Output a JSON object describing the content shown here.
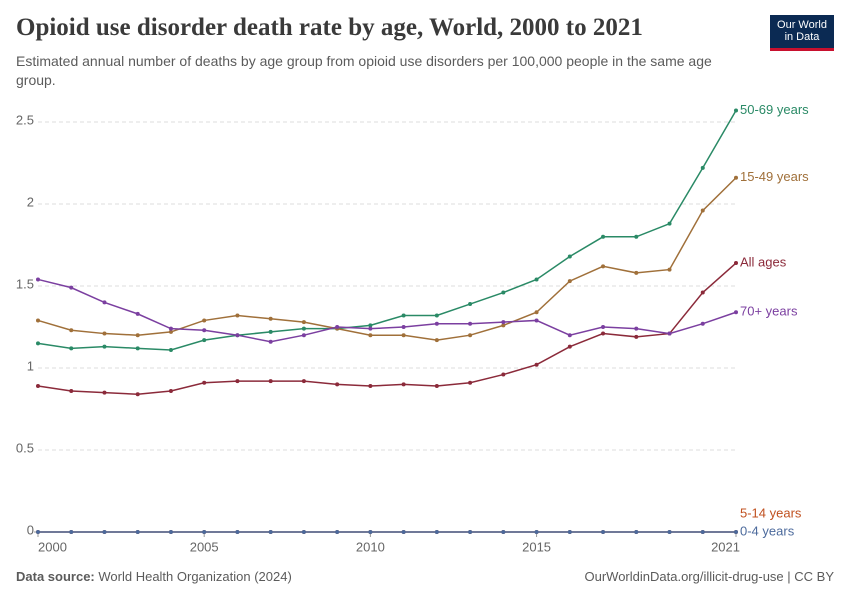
{
  "chart_data": {
    "type": "line",
    "title": "Opioid use disorder death rate by age, World, 2000 to 2021",
    "subtitle": "Estimated annual number of deaths by age group from opioid use disorders per 100,000 people in the same age group.",
    "x": [
      2000,
      2001,
      2002,
      2003,
      2004,
      2005,
      2006,
      2007,
      2008,
      2009,
      2010,
      2011,
      2012,
      2013,
      2014,
      2015,
      2016,
      2017,
      2018,
      2019,
      2020,
      2021
    ],
    "xlim": [
      2000,
      2021
    ],
    "xticks": [
      2000,
      2005,
      2010,
      2015,
      2021
    ],
    "ylim": [
      0,
      2.6
    ],
    "yticks": [
      0,
      0.5,
      1,
      1.5,
      2,
      2.5
    ],
    "grid": true,
    "series": [
      {
        "name": "50-69 years",
        "color": "#2a8a66",
        "values": [
          1.15,
          1.12,
          1.13,
          1.12,
          1.11,
          1.17,
          1.2,
          1.22,
          1.24,
          1.24,
          1.26,
          1.32,
          1.32,
          1.39,
          1.46,
          1.54,
          1.68,
          1.8,
          1.8,
          1.88,
          2.22,
          2.57
        ]
      },
      {
        "name": "15-49 years",
        "color": "#a0703a",
        "values": [
          1.29,
          1.23,
          1.21,
          1.2,
          1.22,
          1.29,
          1.32,
          1.3,
          1.28,
          1.24,
          1.2,
          1.2,
          1.17,
          1.2,
          1.26,
          1.34,
          1.53,
          1.62,
          1.58,
          1.6,
          1.96,
          2.16
        ]
      },
      {
        "name": "All ages",
        "color": "#8b2a3a",
        "values": [
          0.89,
          0.86,
          0.85,
          0.84,
          0.86,
          0.91,
          0.92,
          0.92,
          0.92,
          0.9,
          0.89,
          0.9,
          0.89,
          0.91,
          0.96,
          1.02,
          1.13,
          1.21,
          1.19,
          1.21,
          1.46,
          1.64
        ]
      },
      {
        "name": "70+ years",
        "color": "#7b3fa0",
        "values": [
          1.54,
          1.49,
          1.4,
          1.33,
          1.24,
          1.23,
          1.2,
          1.16,
          1.2,
          1.25,
          1.24,
          1.25,
          1.27,
          1.27,
          1.28,
          1.29,
          1.2,
          1.25,
          1.24,
          1.21,
          1.27,
          1.34
        ]
      },
      {
        "name": "5-14 years",
        "color": "#c0501f",
        "values": [
          0,
          0,
          0,
          0,
          0,
          0,
          0,
          0,
          0,
          0,
          0,
          0,
          0,
          0,
          0,
          0,
          0,
          0,
          0,
          0,
          0,
          0
        ]
      },
      {
        "name": "0-4 years",
        "color": "#4c6a9c",
        "values": [
          0,
          0,
          0,
          0,
          0,
          0,
          0,
          0,
          0,
          0,
          0,
          0,
          0,
          0,
          0,
          0,
          0,
          0,
          0,
          0,
          0,
          0
        ]
      }
    ]
  },
  "logo": [
    "Our World",
    "in Data"
  ],
  "footer": {
    "source_label": "Data source:",
    "source": "World Health Organization (2024)",
    "url": "OurWorldinData.org/illicit-drug-use | CC BY"
  }
}
